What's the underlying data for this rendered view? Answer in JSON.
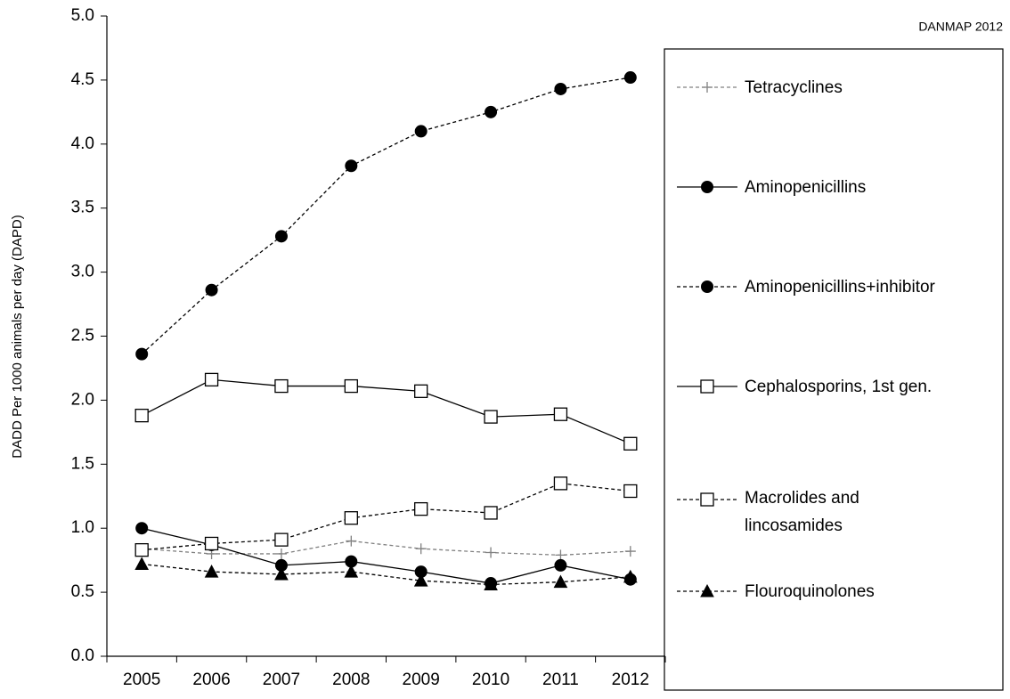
{
  "chart_data": {
    "type": "line",
    "annotation": "DANMAP 2012",
    "y_axis_label": "DADD Per 1000 animals per day (DAPD)",
    "categories": [
      "2005",
      "2006",
      "2007",
      "2008",
      "2009",
      "2010",
      "2011",
      "2012"
    ],
    "ylim": [
      0,
      5
    ],
    "yticks": [
      {
        "value": 0,
        "label": "0.0"
      },
      0.5,
      {
        "value": 1,
        "label": "1.0"
      },
      1.5,
      {
        "value": 2,
        "label": "2.0"
      },
      2.5,
      {
        "value": 3,
        "label": "3.0"
      },
      3.5,
      {
        "value": 4,
        "label": "4.0"
      },
      4.5,
      {
        "value": 5,
        "label": "5.0"
      }
    ],
    "grid": false,
    "legend": "right",
    "series": [
      {
        "name": "Tetracyclines",
        "color": "#808080",
        "line_style": "dashed",
        "marker": "plus",
        "values": [
          0.84,
          0.8,
          0.8,
          0.9,
          0.84,
          0.81,
          0.79,
          0.82
        ]
      },
      {
        "name": "Aminopenicillins",
        "color": "#000000",
        "line_style": "solid",
        "marker": "filled-circle",
        "values": [
          1.0,
          0.87,
          0.71,
          0.74,
          0.66,
          0.57,
          0.71,
          0.6
        ]
      },
      {
        "name": "Aminopenicillins+inhibitor",
        "color": "#000000",
        "line_style": "dashed",
        "marker": "filled-circle",
        "values": [
          2.36,
          2.86,
          3.28,
          3.83,
          4.1,
          4.25,
          4.43,
          4.52
        ]
      },
      {
        "name": "Cephalosporins, 1st gen.",
        "color": "#000000",
        "line_style": "solid",
        "marker": "open-square",
        "values": [
          1.88,
          2.16,
          2.11,
          2.11,
          2.07,
          1.87,
          1.89,
          1.66
        ]
      },
      {
        "name": "Macrolides and lincosamides",
        "color": "#000000",
        "line_style": "dashed",
        "marker": "open-square",
        "values": [
          0.83,
          0.88,
          0.91,
          1.08,
          1.15,
          1.12,
          1.35,
          1.29
        ]
      },
      {
        "name": "Flouroquinolones",
        "color": "#000000",
        "line_style": "dashed",
        "marker": "filled-triangle",
        "values": [
          0.72,
          0.66,
          0.64,
          0.66,
          0.59,
          0.56,
          0.58,
          0.62
        ]
      }
    ]
  }
}
